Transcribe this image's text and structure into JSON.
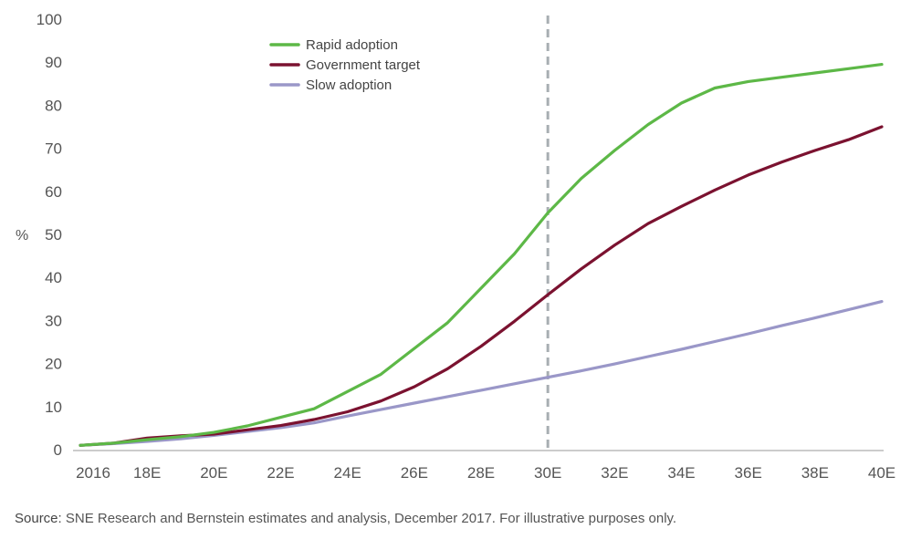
{
  "chart_data": {
    "type": "line",
    "ylabel": "%",
    "ylim": [
      0,
      100
    ],
    "yticks": [
      0,
      10,
      20,
      30,
      40,
      50,
      60,
      70,
      80,
      90,
      100
    ],
    "xlim": [
      2016,
      2040
    ],
    "xticks": [
      {
        "x": 2016,
        "label": "2016"
      },
      {
        "x": 2018,
        "label": "18E"
      },
      {
        "x": 2020,
        "label": "20E"
      },
      {
        "x": 2022,
        "label": "22E"
      },
      {
        "x": 2024,
        "label": "24E"
      },
      {
        "x": 2026,
        "label": "26E"
      },
      {
        "x": 2028,
        "label": "28E"
      },
      {
        "x": 2030,
        "label": "30E"
      },
      {
        "x": 2032,
        "label": "32E"
      },
      {
        "x": 2034,
        "label": "34E"
      },
      {
        "x": 2036,
        "label": "36E"
      },
      {
        "x": 2038,
        "label": "38E"
      },
      {
        "x": 2040,
        "label": "40E"
      }
    ],
    "vline_x": 2030,
    "grid": false,
    "legend_position": "top-center",
    "x": [
      2016,
      2017,
      2018,
      2019,
      2020,
      2021,
      2022,
      2023,
      2024,
      2025,
      2026,
      2027,
      2028,
      2029,
      2030,
      2031,
      2032,
      2033,
      2034,
      2035,
      2036,
      2037,
      2038,
      2039,
      2040
    ],
    "series": [
      {
        "name": "Rapid adoption",
        "color": "#5db847",
        "values": [
          1,
          1.5,
          2.3,
          3,
          4,
          5.5,
          7.5,
          9.5,
          13.5,
          17.5,
          23.5,
          29.5,
          37.5,
          45.5,
          55,
          63,
          69.5,
          75.5,
          80.5,
          84,
          85.5,
          86.5,
          87.5,
          88.5,
          89.5
        ]
      },
      {
        "name": "Government target",
        "color": "#7b1230",
        "values": [
          1,
          1.5,
          2.7,
          3.2,
          3.6,
          4.6,
          5.6,
          7,
          8.8,
          11.3,
          14.6,
          18.8,
          24,
          29.8,
          36,
          42,
          47.5,
          52.5,
          56.5,
          60.3,
          63.8,
          66.8,
          69.5,
          72,
          75
        ]
      },
      {
        "name": "Slow adoption",
        "color": "#9a97c8",
        "values": [
          1,
          1.4,
          1.9,
          2.5,
          3.3,
          4.2,
          5.1,
          6.2,
          7.8,
          9.3,
          10.8,
          12.3,
          13.8,
          15.3,
          16.8,
          18.3,
          19.9,
          21.6,
          23.3,
          25.1,
          26.9,
          28.8,
          30.6,
          32.5,
          34.4
        ]
      }
    ]
  },
  "source": {
    "label": "Source:",
    "text": " SNE Research and Bernstein estimates and analysis, December 2017. For illustrative purposes only."
  }
}
